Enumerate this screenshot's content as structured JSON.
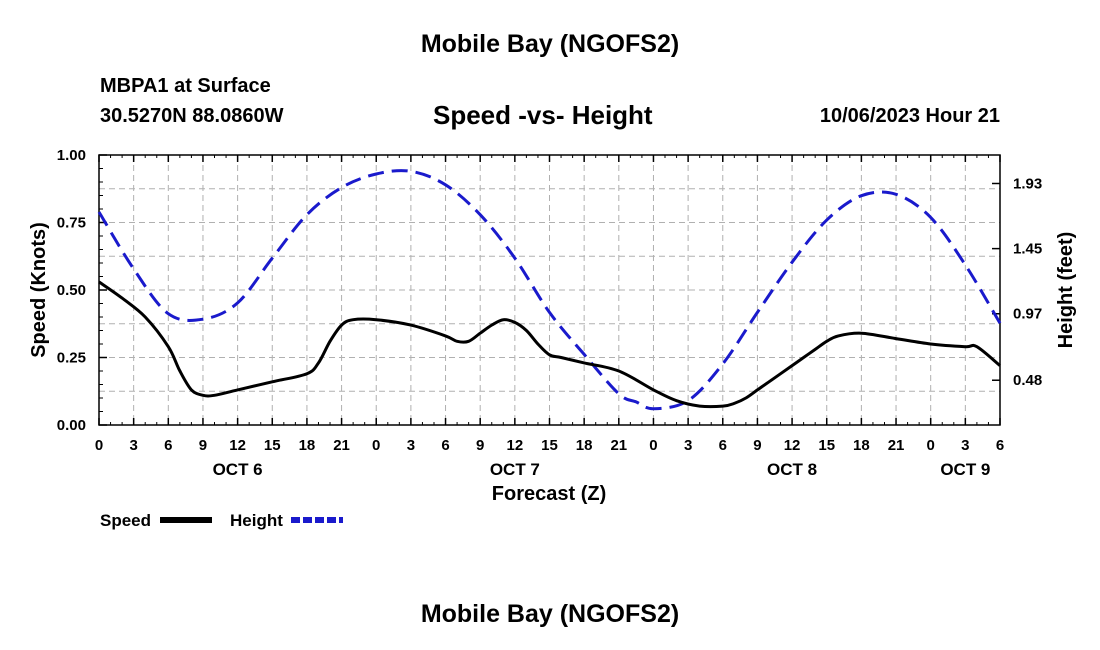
{
  "page": {
    "title": "Mobile Bay (NGOFS2)",
    "footer_title": "Mobile Bay (NGOFS2)"
  },
  "station": {
    "name": "MBPA1 at Surface",
    "coords": "30.5270N  88.0860W",
    "datetime": "10/06/2023 Hour 21"
  },
  "colors": {
    "speed": "#000000",
    "height": "#1a1acc",
    "grid": "#b0b0b0"
  },
  "chart_data": {
    "type": "line",
    "title": "Speed -vs- Height",
    "xlabel": "Forecast (Z)",
    "ylabel": "Speed (Knots)",
    "y2label": "Height (feet)",
    "xlim": [
      0,
      78
    ],
    "ylim": [
      0,
      1.0
    ],
    "y2lim": [
      0.15,
      2.14
    ],
    "x_ticks": [
      0,
      3,
      6,
      9,
      12,
      15,
      18,
      21,
      24,
      27,
      30,
      33,
      36,
      39,
      42,
      45,
      48,
      51,
      54,
      57,
      60,
      63,
      66,
      69,
      72,
      75,
      78
    ],
    "x_tick_labels": [
      "0",
      "3",
      "6",
      "9",
      "12",
      "15",
      "18",
      "21",
      "0",
      "3",
      "6",
      "9",
      "12",
      "15",
      "18",
      "21",
      "0",
      "3",
      "6",
      "9",
      "12",
      "15",
      "18",
      "21",
      "0",
      "3",
      "6"
    ],
    "y_ticks": [
      0,
      0.25,
      0.5,
      0.75,
      1.0
    ],
    "y_tick_labels": [
      "0.00",
      "0.25",
      "0.50",
      "0.75",
      "1.00"
    ],
    "y2_ticks": [
      0.48,
      0.97,
      1.45,
      1.93
    ],
    "y2_tick_labels": [
      "0.48",
      "0.97",
      "1.45",
      "1.93"
    ],
    "day_labels": [
      {
        "x": 12,
        "label": "OCT 6"
      },
      {
        "x": 36,
        "label": "OCT 7"
      },
      {
        "x": 60,
        "label": "OCT 8"
      },
      {
        "x": 75,
        "label": "OCT 9"
      }
    ],
    "series": [
      {
        "name": "Speed",
        "axis": "left",
        "style": "solid",
        "x": [
          0,
          2,
          4,
          6,
          7,
          8,
          9,
          10,
          12,
          15,
          18,
          19,
          20,
          21,
          22,
          24,
          27,
          30,
          31,
          32,
          33,
          34,
          35,
          36,
          37,
          38,
          39,
          40,
          42,
          45,
          48,
          50,
          52,
          54,
          55,
          56,
          57,
          58,
          60,
          61,
          62,
          63,
          64,
          66,
          69,
          72,
          75,
          76,
          78
        ],
        "values": [
          0.53,
          0.47,
          0.4,
          0.29,
          0.2,
          0.13,
          0.11,
          0.11,
          0.13,
          0.16,
          0.19,
          0.23,
          0.31,
          0.37,
          0.39,
          0.39,
          0.37,
          0.33,
          0.31,
          0.31,
          0.34,
          0.37,
          0.39,
          0.38,
          0.35,
          0.3,
          0.26,
          0.25,
          0.23,
          0.2,
          0.13,
          0.09,
          0.07,
          0.07,
          0.08,
          0.1,
          0.13,
          0.16,
          0.22,
          0.25,
          0.28,
          0.31,
          0.33,
          0.34,
          0.32,
          0.3,
          0.29,
          0.29,
          0.22
        ]
      },
      {
        "name": "Height",
        "axis": "right",
        "style": "dashed",
        "x": [
          0,
          3,
          6,
          9,
          12,
          15,
          18,
          21,
          24,
          27,
          30,
          33,
          36,
          39,
          42,
          45,
          46.5,
          48,
          51,
          54,
          57,
          60,
          63,
          66,
          69,
          72,
          75,
          78
        ],
        "values": [
          1.72,
          1.3,
          0.97,
          0.93,
          1.05,
          1.38,
          1.7,
          1.9,
          2.0,
          2.02,
          1.92,
          1.7,
          1.38,
          0.98,
          0.67,
          0.38,
          0.32,
          0.27,
          0.33,
          0.6,
          0.98,
          1.35,
          1.66,
          1.84,
          1.85,
          1.68,
          1.33,
          0.9
        ]
      }
    ],
    "legend": [
      {
        "label": "Speed"
      },
      {
        "label": "Height"
      }
    ],
    "legend_position": "bottom-left"
  }
}
